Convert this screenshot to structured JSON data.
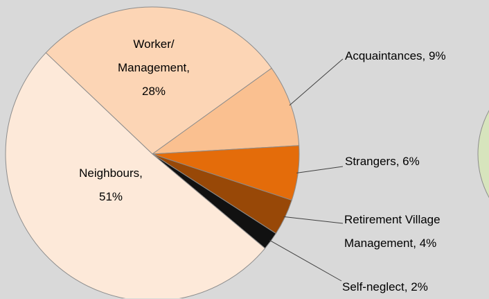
{
  "chart_data": {
    "type": "pie",
    "categories": [
      "Worker/ Management",
      "Acquaintances",
      "Strangers",
      "Retirement Village Management",
      "Self-neglect",
      "Neighbours"
    ],
    "values": [
      28,
      9,
      6,
      4,
      2,
      51
    ],
    "value_labels": [
      "28%",
      "9%",
      "6%",
      "4%",
      "2%",
      "51%"
    ],
    "colors": [
      "#fcd5b5",
      "#fac090",
      "#e46c0a",
      "#984807",
      "#111111",
      "#fde9d9"
    ]
  }
}
